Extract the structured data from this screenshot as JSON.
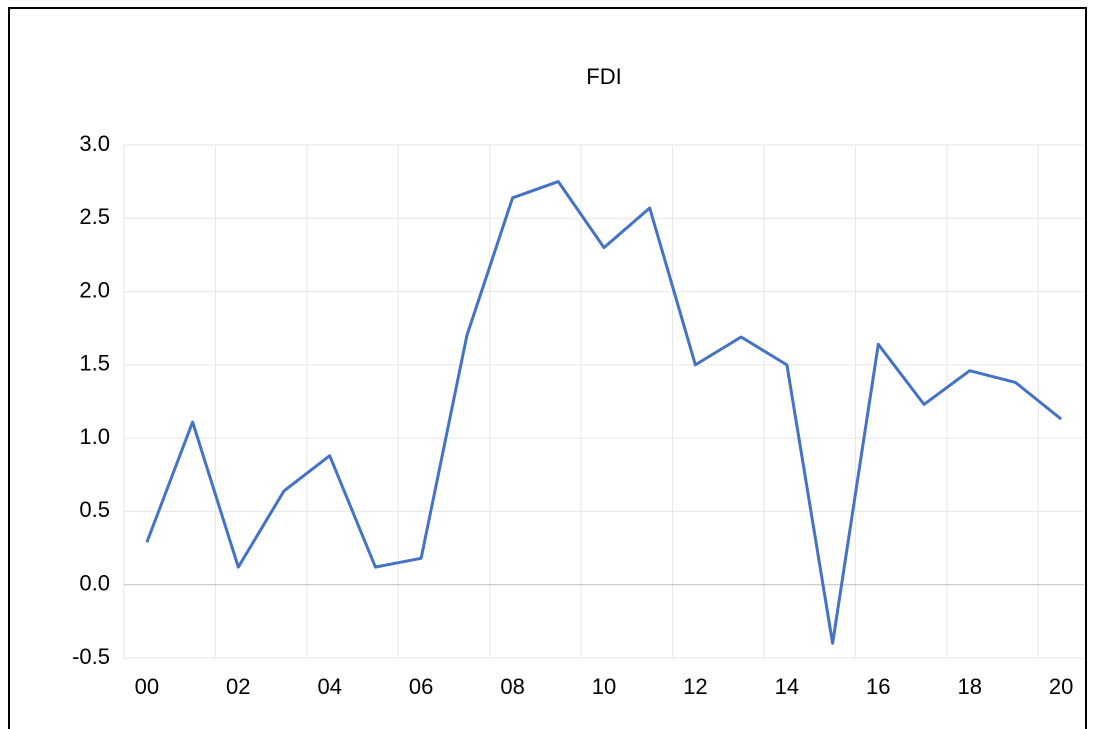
{
  "chart_data": {
    "type": "line",
    "title": "FDI",
    "categories": [
      "00",
      null,
      "02",
      null,
      "04",
      null,
      "06",
      null,
      "08",
      null,
      "10",
      null,
      "12",
      null,
      "14",
      null,
      "16",
      null,
      "18",
      null,
      "20"
    ],
    "series": [
      {
        "name": "FDI",
        "color": "#4472c4",
        "values": [
          0.29,
          1.11,
          0.12,
          0.64,
          0.88,
          0.12,
          0.18,
          1.7,
          2.64,
          2.75,
          2.3,
          2.57,
          1.5,
          1.69,
          1.5,
          -0.4,
          1.64,
          1.23,
          1.46,
          1.38,
          1.13
        ]
      }
    ],
    "ylim": [
      -0.5,
      3.0
    ],
    "yticks": [
      -0.5,
      {
        "value": 0,
        "label": "0.0"
      },
      0.5,
      {
        "value": 1,
        "label": "1.0"
      },
      1.5,
      {
        "value": 2,
        "label": "2.0"
      },
      2.5,
      {
        "value": 3,
        "label": "3.0"
      }
    ],
    "grid": true
  }
}
